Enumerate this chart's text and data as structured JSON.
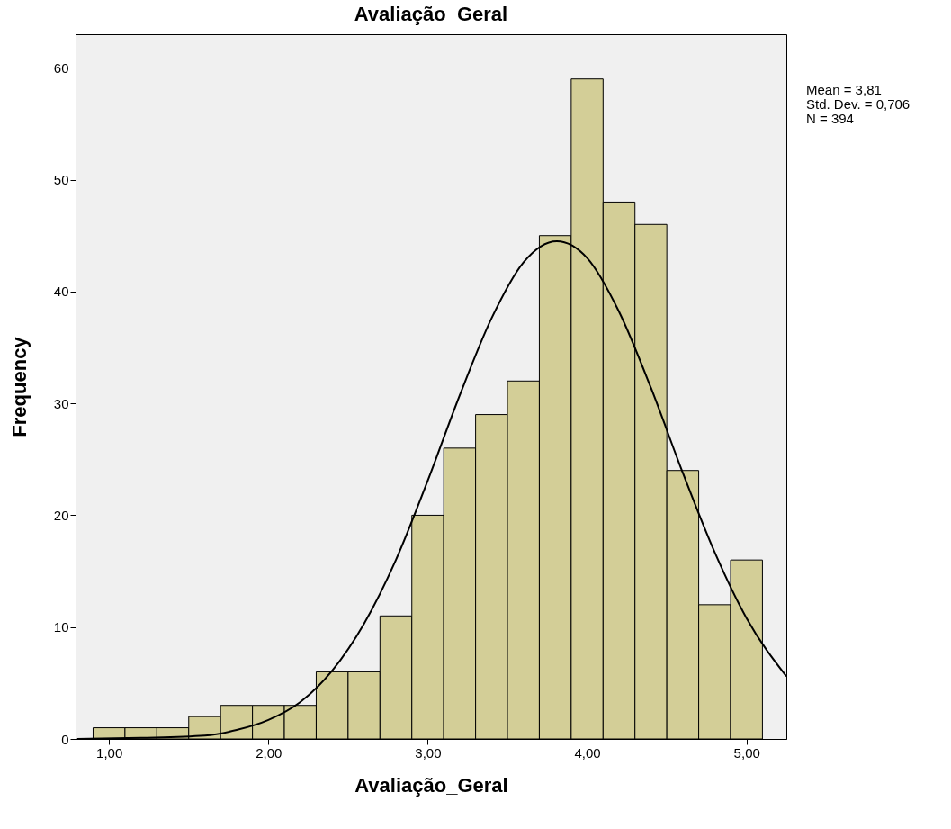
{
  "chart_data": {
    "type": "histogram",
    "title": "Avaliação_Geral",
    "xlabel": "Avaliação_Geral",
    "ylabel": "Frequency",
    "bins": [
      0.9,
      1.1,
      1.3,
      1.5,
      1.7,
      1.9,
      2.1,
      2.3,
      2.5,
      2.7,
      2.9,
      3.1,
      3.3,
      3.5,
      3.7,
      3.9,
      4.1,
      4.3,
      4.5,
      4.7,
      4.9,
      5.1
    ],
    "values": [
      1,
      1,
      1,
      2,
      3,
      3,
      3,
      6,
      6,
      11,
      20,
      26,
      29,
      32,
      45,
      59,
      48,
      46,
      24,
      12,
      16
    ],
    "color": "#d3ce97",
    "series": [
      {
        "type": "line",
        "color": "#000000",
        "x": [
          0.8,
          1.2,
          1.6,
          1.8,
          2.0,
          2.2,
          2.4,
          2.6,
          2.8,
          3.0,
          3.2,
          3.4,
          3.6,
          3.81,
          4.0,
          4.2,
          4.4,
          4.6,
          4.8,
          5.0,
          5.25
        ],
        "values": [
          0.0,
          0.1,
          0.3,
          0.8,
          1.7,
          3.3,
          6.1,
          10.3,
          16.0,
          23.1,
          30.7,
          37.6,
          42.6,
          44.5,
          43.0,
          38.2,
          31.4,
          23.8,
          16.7,
          10.8,
          5.6
        ]
      }
    ],
    "xlim": [
      0.79,
      5.25
    ],
    "xticks": [
      {
        "value": 1,
        "label": "1,00"
      },
      {
        "value": 2,
        "label": "2,00"
      },
      {
        "value": 3,
        "label": "3,00"
      },
      {
        "value": 4,
        "label": "4,00"
      },
      {
        "value": 5,
        "label": "5,00"
      }
    ],
    "ylim": [
      0,
      63
    ],
    "yticks": [
      0,
      10,
      20,
      30,
      40,
      50,
      60
    ],
    "grid": false,
    "annotations": [
      "Mean = 3,81",
      "Std. Dev. = 0,706",
      "N = 394"
    ]
  }
}
